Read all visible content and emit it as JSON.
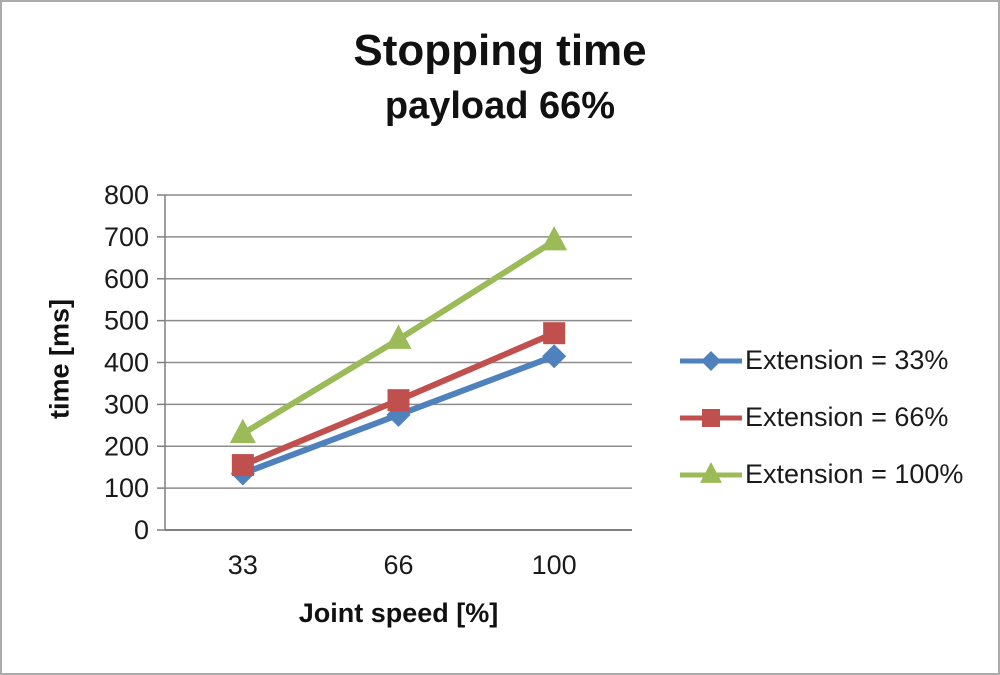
{
  "figure": {
    "title": "Stopping time",
    "subtitle": "payload 66%"
  },
  "chart_data": {
    "type": "line",
    "title": "Stopping time",
    "subtitle": "payload 66%",
    "xlabel": "Joint speed [%]",
    "ylabel": "time [ms]",
    "categories": [
      "33",
      "66",
      "100"
    ],
    "series": [
      {
        "name": "Extension = 33%",
        "values": [
          135,
          275,
          415
        ],
        "color": "#4F81BD",
        "marker": "diamond"
      },
      {
        "name": "Extension = 66%",
        "values": [
          155,
          310,
          470
        ],
        "color": "#C0504D",
        "marker": "square"
      },
      {
        "name": "Extension = 100%",
        "values": [
          230,
          455,
          690
        ],
        "color": "#9BBB59",
        "marker": "triangle"
      }
    ],
    "ylim": [
      0,
      800
    ],
    "yticks": [
      0,
      100,
      200,
      300,
      400,
      500,
      600,
      700,
      800
    ],
    "grid": true,
    "legend_position": "right",
    "colors": {
      "gridline": "#8c8c8c",
      "axis": "#7f7f7f",
      "tick_text": "#1a1a1a",
      "background": "#ffffff"
    }
  }
}
